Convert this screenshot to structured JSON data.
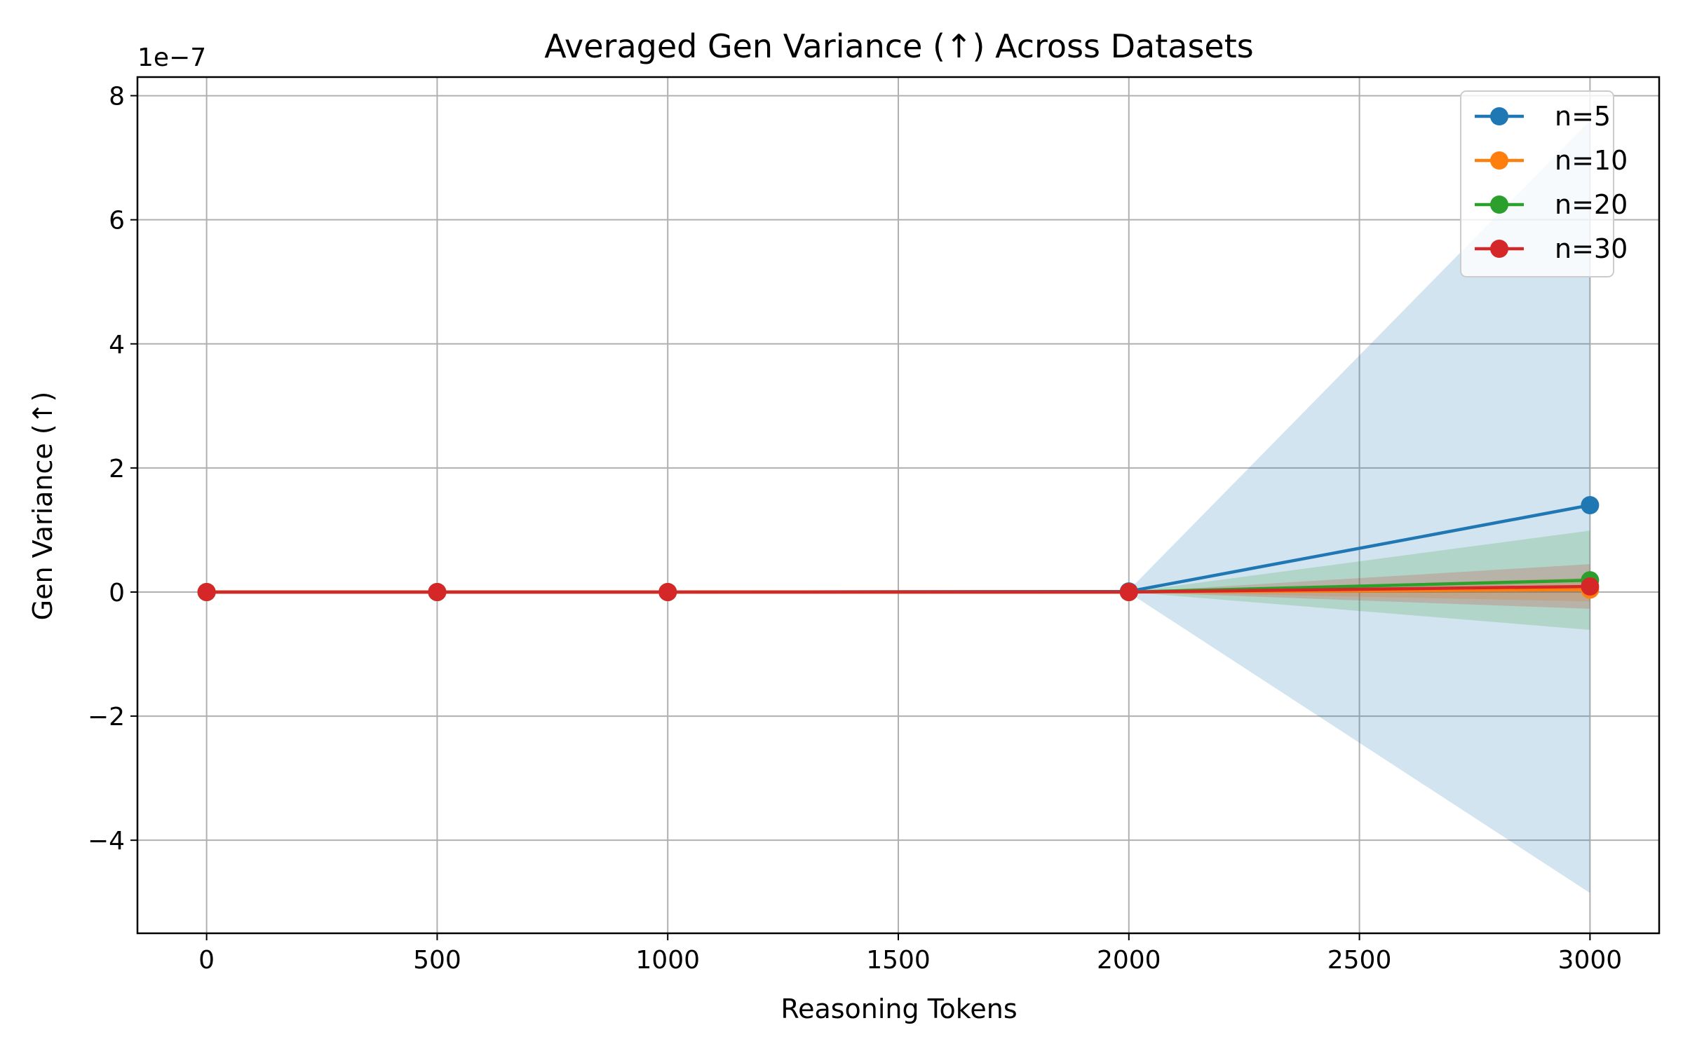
{
  "chart_data": {
    "type": "line",
    "title": "Averaged Gen Variance (↑) Across Datasets",
    "xlabel": "Reasoning Tokens",
    "ylabel": "Gen Variance (↑)",
    "y_scale_label": "1e−7",
    "xlim": [
      -150,
      3150
    ],
    "ylim": [
      -5.5e-07,
      8.3e-07
    ],
    "x_ticks": [
      0,
      500,
      1000,
      1500,
      2000,
      2500,
      3000
    ],
    "x_tick_labels": [
      "0",
      "500",
      "1000",
      "1500",
      "2000",
      "2500",
      "3000"
    ],
    "y_ticks": [
      -4e-07,
      -2e-07,
      0,
      2e-07,
      4e-07,
      6e-07,
      8e-07
    ],
    "y_tick_labels": [
      "−4",
      "−2",
      "0",
      "2",
      "4",
      "6",
      "8"
    ],
    "grid": true,
    "legend_position": "top-right",
    "x": [
      0,
      500,
      1000,
      2000,
      3000
    ],
    "series": [
      {
        "name": "n=5",
        "color": "#1f77b4",
        "values": [
          0,
          0,
          0,
          1e-09,
          1.4e-07
        ],
        "band_lower": [
          0,
          0,
          0,
          -1e-09,
          -4.85e-07
        ],
        "band_upper": [
          0,
          0,
          0,
          3e-09,
          7.6e-07
        ]
      },
      {
        "name": "n=10",
        "color": "#ff7f0e",
        "values": [
          0,
          0,
          0,
          0,
          4e-09
        ],
        "band_lower": [
          0,
          0,
          0,
          0,
          -1.5e-08
        ],
        "band_upper": [
          0,
          0,
          0,
          0,
          2.3e-08
        ]
      },
      {
        "name": "n=20",
        "color": "#2ca02c",
        "values": [
          0,
          0,
          0,
          0,
          1.9e-08
        ],
        "band_lower": [
          0,
          0,
          0,
          0,
          -6.1e-08
        ],
        "band_upper": [
          0,
          0,
          0,
          0,
          9.9e-08
        ]
      },
      {
        "name": "n=30",
        "color": "#d62728",
        "values": [
          0,
          0,
          0,
          0,
          9e-09
        ],
        "band_lower": [
          0,
          0,
          0,
          0,
          -2.7e-08
        ],
        "band_upper": [
          0,
          0,
          0,
          0,
          4.5e-08
        ]
      }
    ]
  }
}
